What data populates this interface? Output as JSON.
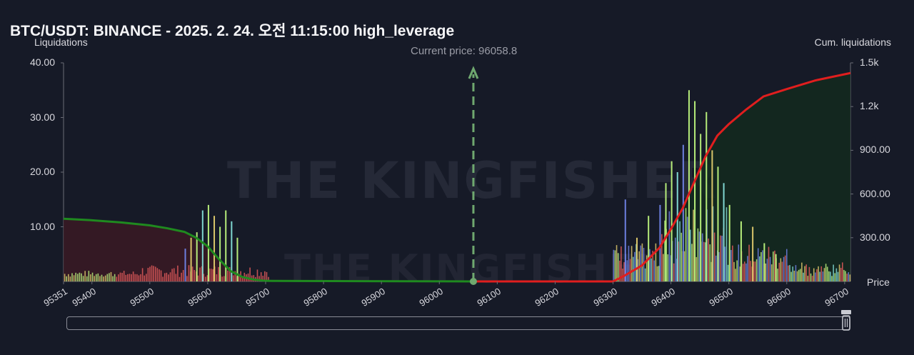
{
  "title": "BTC/USDT: BINANCE - 2025. 2. 24. 오전 11:15:00 high_leverage",
  "watermark": "THE KINGFISHER",
  "chart_data": {
    "type": "bar",
    "ylabel_left": "Liquidations",
    "ylabel_right": "Cum. liquidations",
    "xlabel": "Price",
    "current_price_label": "Current price: 96058.8",
    "current_price": 96058.8,
    "x_range": [
      95351,
      96710
    ],
    "ylim_left": [
      0,
      40
    ],
    "ylim_right": [
      0,
      1500
    ],
    "left_ticks": [
      "40.00",
      "30.00",
      "20.00",
      "10.00"
    ],
    "left_tick_values": [
      40,
      30,
      20,
      10
    ],
    "right_ticks": [
      "1.5k",
      "1.2k",
      "900.00",
      "600.00",
      "300.00"
    ],
    "right_tick_values": [
      1500,
      1200,
      900,
      600,
      300
    ],
    "x_ticks": [
      "95351",
      "95400",
      "95500",
      "95600",
      "95700",
      "95800",
      "95900",
      "96000",
      "96100",
      "96200",
      "96300",
      "96400",
      "96500",
      "96600",
      "96700"
    ],
    "x_tick_values": [
      95351,
      95400,
      95500,
      95600,
      95700,
      95800,
      95900,
      96000,
      96100,
      96200,
      96300,
      96400,
      96500,
      96600,
      96700
    ],
    "colors": {
      "long_line": "#1f8a1f",
      "short_line": "#e01e1e",
      "long_fill": "#3a1a24",
      "short_fill": "#132a1f",
      "bar_red": "#e05a5a",
      "bar_green": "#b6ec7a",
      "bar_blue": "#6d7fe0",
      "bar_yellow": "#d9c56a",
      "bar_cyan": "#7fd6d0",
      "price_line": "#6fa86f"
    },
    "series": [
      {
        "name": "long_cumulative",
        "x": [
          95351,
          95400,
          95450,
          95500,
          95530,
          95560,
          95580,
          95600,
          95620,
          95640,
          95660,
          95680,
          95700,
          96058.8
        ],
        "y": [
          430,
          420,
          405,
          385,
          365,
          340,
          300,
          240,
          150,
          70,
          30,
          12,
          4,
          0
        ]
      },
      {
        "name": "short_cumulative",
        "x": [
          96058.8,
          96300,
          96320,
          96350,
          96380,
          96400,
          96420,
          96440,
          96460,
          96480,
          96500,
          96530,
          96560,
          96600,
          96650,
          96710
        ],
        "y": [
          0,
          0,
          40,
          110,
          230,
          360,
          500,
          680,
          860,
          1000,
          1080,
          1180,
          1270,
          1320,
          1380,
          1430
        ]
      }
    ],
    "highlight_bars": {
      "x": [
        95560,
        95570,
        95580,
        95590,
        95600,
        95610,
        95620,
        95630,
        95640,
        95650,
        96320,
        96340,
        96360,
        96380,
        96390,
        96400,
        96410,
        96420,
        96430,
        96440,
        96450,
        96460,
        96470,
        96480,
        96490,
        96500,
        96520,
        96540,
        96560,
        96580
      ],
      "y": [
        6,
        8,
        9,
        13,
        14,
        12,
        10,
        13,
        11,
        8,
        15,
        8,
        12,
        14,
        18,
        22,
        20,
        25,
        35,
        33,
        27,
        31,
        24,
        21,
        18,
        14,
        11,
        10,
        7,
        5
      ],
      "color": [
        "blue",
        "yellow",
        "green",
        "cyan",
        "green",
        "yellow",
        "green",
        "green",
        "cyan",
        "green",
        "blue",
        "yellow",
        "green",
        "blue",
        "green",
        "green",
        "cyan",
        "blue",
        "green",
        "green",
        "green",
        "green",
        "yellow",
        "green",
        "cyan",
        "green",
        "green",
        "yellow",
        "green",
        "green"
      ]
    }
  }
}
